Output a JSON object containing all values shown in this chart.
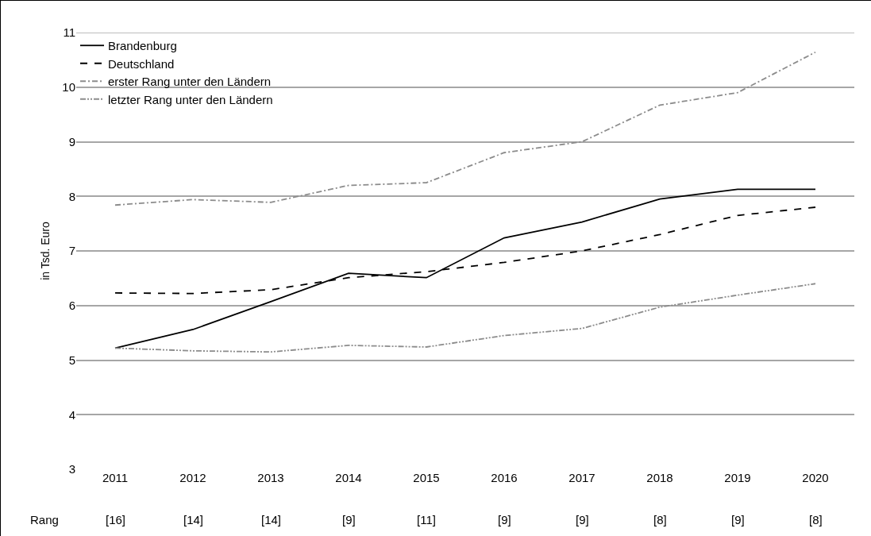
{
  "chart_data": {
    "type": "line",
    "ylabel": "in Tsd. Euro",
    "categories": [
      "2011",
      "2012",
      "2013",
      "2014",
      "2015",
      "2016",
      "2017",
      "2018",
      "2019",
      "2020"
    ],
    "series": [
      {
        "name": "Brandenburg",
        "color": "#000000",
        "line_style": "solid",
        "values": [
          5.22,
          5.56,
          6.07,
          6.59,
          6.51,
          7.24,
          7.53,
          7.95,
          8.13,
          8.13
        ]
      },
      {
        "name": "Deutschland",
        "color": "#000000",
        "line_style": "dashed",
        "values": [
          6.23,
          6.22,
          6.29,
          6.51,
          6.62,
          6.79,
          7.0,
          7.3,
          7.65,
          7.8
        ]
      },
      {
        "name": "erster Rang unter den Ländern",
        "color": "#8c8c8c",
        "line_style": "dashdot",
        "values": [
          7.84,
          7.94,
          7.89,
          8.2,
          8.25,
          8.8,
          9.0,
          9.67,
          9.9,
          10.64
        ]
      },
      {
        "name": "letzter Rang unter den Ländern",
        "color": "#8c8c8c",
        "line_style": "dashdotdot",
        "values": [
          5.22,
          5.17,
          5.15,
          5.27,
          5.24,
          5.45,
          5.58,
          5.97,
          6.19,
          6.4
        ]
      }
    ],
    "ylim": [
      3,
      11
    ],
    "yticks": [
      3,
      4,
      5,
      6,
      7,
      8,
      9,
      10,
      11
    ],
    "grid": "y",
    "legend": "top left",
    "marker": "none",
    "annotations": [
      "Rang",
      "[16]",
      "[14]",
      "[14]",
      "[9]",
      "[11]",
      "[9]",
      "[9]",
      "[8]",
      "[9]",
      "[8]"
    ]
  }
}
